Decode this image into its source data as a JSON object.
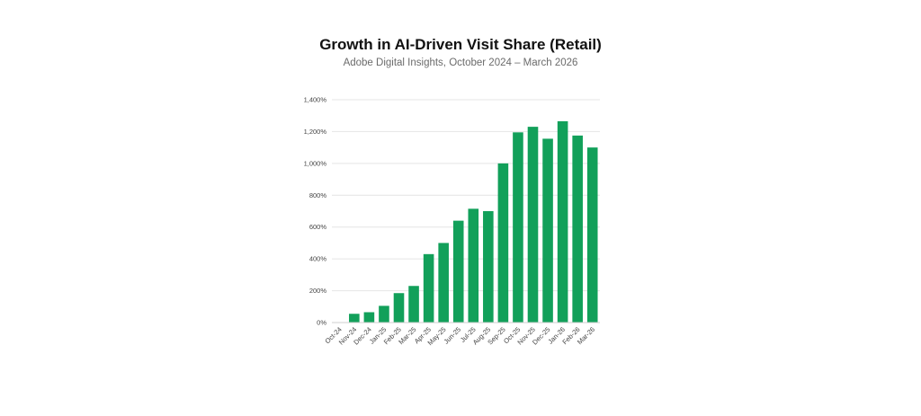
{
  "chart_data": {
    "type": "bar",
    "title": "Growth in AI-Driven Visit Share (Retail)",
    "subtitle": "Adobe Digital Insights, October 2024 – March 2026",
    "xlabel": "",
    "ylabel": "",
    "categories": [
      "Oct-24",
      "Nov-24",
      "Dec-24",
      "Jan-25",
      "Feb-25",
      "Mar-25",
      "Apr-25",
      "May-25",
      "Jun-25",
      "Jul-25",
      "Aug-25",
      "Sep-25",
      "Oct-25",
      "Nov-25",
      "Dec-25",
      "Jan-26",
      "Feb-26",
      "Mar-26"
    ],
    "values": [
      0,
      55,
      65,
      105,
      185,
      230,
      430,
      500,
      640,
      715,
      700,
      1000,
      1195,
      1230,
      1155,
      1265,
      1175,
      1100
    ],
    "ylim": [
      0,
      1400
    ],
    "yticks": [
      0,
      200,
      400,
      600,
      800,
      1000,
      1200,
      1400
    ],
    "ytick_labels": [
      "0%",
      "200%",
      "400%",
      "600%",
      "800%",
      "1,000%",
      "1,200%",
      "1,400%"
    ],
    "grid": true,
    "legend": "none",
    "bar_color": "#12a05a"
  }
}
